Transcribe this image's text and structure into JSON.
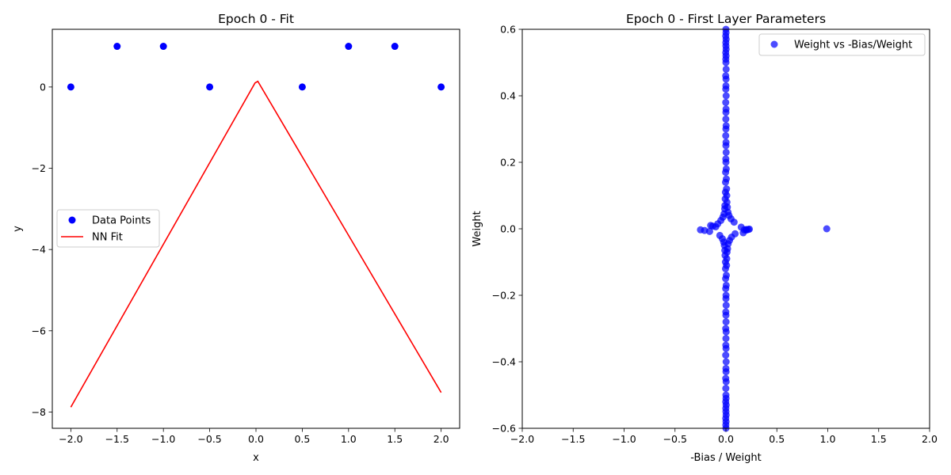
{
  "chart_data": [
    {
      "type": "scatter+line",
      "title": "Epoch 0 - Fit",
      "xlabel": "x",
      "ylabel": "y",
      "xlim": [
        -2.2,
        2.2
      ],
      "ylim": [
        -8.4,
        1.42
      ],
      "xticks": [
        -2.0,
        -1.5,
        -1.0,
        -0.5,
        0.0,
        0.5,
        1.0,
        1.5,
        2.0
      ],
      "xtick_labels": [
        "−2.0",
        "−1.5",
        "−1.0",
        "−0.5",
        "0.0",
        "0.5",
        "1.0",
        "1.5",
        "2.0"
      ],
      "yticks": [
        0,
        -2,
        -4,
        -6,
        -8
      ],
      "ytick_labels": [
        "0",
        "−2",
        "−4",
        "−6",
        "−8"
      ],
      "legend_position": "center-left",
      "series": [
        {
          "name": "Data Points",
          "kind": "scatter",
          "color": "#0000ff",
          "x": [
            -2.0,
            -1.5,
            -1.0,
            -0.5,
            0.5,
            1.0,
            1.5,
            2.0
          ],
          "y": [
            0,
            1,
            1,
            0,
            0,
            1,
            1,
            0
          ]
        },
        {
          "name": "NN Fit",
          "kind": "line",
          "color": "#ff0000",
          "x": [
            -2.0,
            -0.01,
            0.02,
            2.0
          ],
          "y": [
            -7.88,
            0.1,
            0.14,
            -7.52
          ]
        }
      ]
    },
    {
      "type": "scatter",
      "title": "Epoch 0 - First Layer Parameters",
      "xlabel": "-Bias / Weight",
      "ylabel": "Weight",
      "xlim": [
        -2.0,
        2.0
      ],
      "ylim": [
        -0.6,
        0.6
      ],
      "xticks": [
        -2.0,
        -1.5,
        -1.0,
        -0.5,
        0.0,
        0.5,
        1.0,
        1.5,
        2.0
      ],
      "xtick_labels": [
        "−2.0",
        "−1.5",
        "−1.0",
        "−0.5",
        "0.0",
        "0.5",
        "1.0",
        "1.5",
        "2.0"
      ],
      "yticks": [
        0.6,
        0.4,
        0.2,
        0.0,
        -0.2,
        -0.4,
        -0.6
      ],
      "ytick_labels": [
        "0.6",
        "0.4",
        "0.2",
        "0.0",
        "−0.2",
        "−0.4",
        "−0.6"
      ],
      "legend_position": "top-right",
      "series": [
        {
          "name": "Weight vs -Bias/Weight",
          "kind": "scatter",
          "color": "#0000ff",
          "opacity": 0.7,
          "x": [
            0.0,
            0.001,
            -0.002,
            0.002,
            -0.001,
            0.0,
            0.002,
            -0.002,
            0.001,
            -0.001,
            0.0,
            0.002,
            -0.002,
            0.001,
            0.0,
            -0.001,
            0.002,
            -0.002,
            0.001,
            0.0,
            -0.001,
            0.002,
            0.0,
            -0.002,
            0.001,
            0.0,
            0.002,
            -0.001,
            0.0,
            0.003,
            -0.003,
            0.004,
            -0.004,
            0.006,
            -0.005,
            0.008,
            -0.007,
            0.01,
            -0.01,
            0.014,
            -0.012,
            0.02,
            -0.018,
            0.03,
            -0.03,
            0.05,
            -0.05,
            0.08,
            -0.08,
            -0.15,
            -0.13,
            -0.1,
            0.15,
            0.18,
            0.2,
            0.23,
            0.0,
            -0.001,
            0.001,
            -0.002,
            0.002,
            0.0,
            -0.001,
            0.002,
            -0.002,
            0.001,
            0.0,
            -0.001,
            0.002,
            -0.002,
            0.001,
            0.0,
            0.002,
            -0.002,
            0.001,
            -0.001,
            0.0,
            0.002,
            -0.002,
            0.001,
            0.0,
            -0.001,
            0.002,
            0.0,
            0.001,
            -0.002,
            0.003,
            -0.003,
            0.004,
            -0.004,
            0.006,
            -0.005,
            0.008,
            -0.008,
            0.011,
            -0.011,
            0.016,
            -0.015,
            0.022,
            -0.022,
            0.035,
            -0.035,
            0.055,
            -0.06,
            0.09,
            -0.25,
            -0.21,
            -0.16,
            0.17,
            0.2,
            0.22,
            0.99
          ],
          "y": [
            0.6,
            0.59,
            0.58,
            0.57,
            0.56,
            0.55,
            0.54,
            0.53,
            0.52,
            0.51,
            0.5,
            0.48,
            0.46,
            0.45,
            0.43,
            0.42,
            0.4,
            0.38,
            0.36,
            0.35,
            0.33,
            0.31,
            0.3,
            0.28,
            0.26,
            0.25,
            0.23,
            0.21,
            0.2,
            0.18,
            0.17,
            0.15,
            0.14,
            0.12,
            0.11,
            0.1,
            0.09,
            0.08,
            0.07,
            0.065,
            0.06,
            0.05,
            0.045,
            0.04,
            0.035,
            0.03,
            0.025,
            0.02,
            0.015,
            0.01,
            0.008,
            0.006,
            0.005,
            -0.003,
            -0.002,
            -0.001,
            -0.6,
            -0.59,
            -0.58,
            -0.57,
            -0.56,
            -0.55,
            -0.54,
            -0.53,
            -0.52,
            -0.51,
            -0.5,
            -0.48,
            -0.46,
            -0.45,
            -0.43,
            -0.42,
            -0.4,
            -0.38,
            -0.36,
            -0.35,
            -0.33,
            -0.31,
            -0.3,
            -0.28,
            -0.26,
            -0.25,
            -0.23,
            -0.21,
            -0.2,
            -0.18,
            -0.17,
            -0.15,
            -0.14,
            -0.12,
            -0.11,
            -0.1,
            -0.09,
            -0.08,
            -0.07,
            -0.065,
            -0.06,
            -0.05,
            -0.045,
            -0.04,
            -0.035,
            -0.03,
            -0.025,
            -0.02,
            -0.015,
            -0.003,
            -0.005,
            -0.008,
            -0.012,
            -0.004,
            -0.002,
            0.0
          ]
        }
      ]
    }
  ]
}
